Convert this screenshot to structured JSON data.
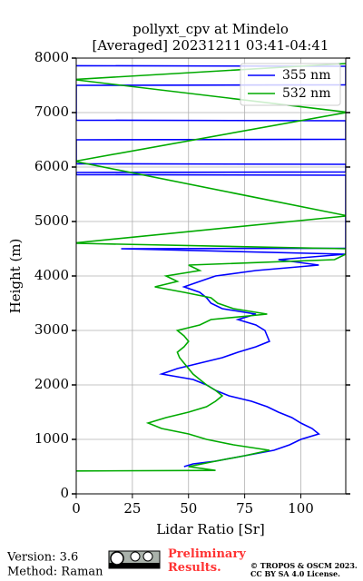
{
  "chart_data": {
    "type": "line",
    "title": "pollyxt_cpv at Mindelo",
    "subtitle": "[Averaged] 20231211 03:41-04:41",
    "xlabel": "Lidar Ratio [Sr]",
    "ylabel": "Height (m)",
    "xlim": [
      0,
      120
    ],
    "xticks": [
      0,
      25,
      50,
      75,
      100
    ],
    "ylim": [
      0,
      8000
    ],
    "yticks": [
      0,
      1000,
      2000,
      3000,
      4000,
      5000,
      6000,
      7000,
      8000
    ],
    "grid": true,
    "legend": "upper right",
    "series": [
      {
        "name": "355 nm",
        "color": "#0000ff",
        "y": [
          500,
          550,
          600,
          700,
          800,
          900,
          1000,
          1100,
          1200,
          1300,
          1400,
          1500,
          1600,
          1700,
          1800,
          1900,
          2000,
          2100,
          2200,
          2300,
          2400,
          2500,
          2600,
          2700,
          2800,
          2900,
          3000,
          3100,
          3200,
          3300,
          3400,
          3500,
          3600,
          3700,
          3800,
          3900,
          4000,
          4100,
          4200,
          4300,
          4400,
          4500,
          4510,
          5850,
          5860,
          5900,
          5910,
          6050,
          6060,
          6500,
          6510,
          6850,
          6860,
          7500,
          7510,
          7850,
          7860
        ],
        "values": [
          48,
          52,
          62,
          75,
          88,
          95,
          100,
          108,
          105,
          100,
          96,
          90,
          85,
          78,
          68,
          62,
          58,
          52,
          38,
          45,
          55,
          65,
          72,
          80,
          86,
          85,
          84,
          80,
          72,
          80,
          65,
          60,
          58,
          55,
          48,
          55,
          62,
          80,
          108,
          90,
          120,
          20,
          120,
          120,
          0,
          0,
          120,
          120,
          0,
          0,
          120,
          120,
          0,
          0,
          120,
          120,
          0
        ]
      },
      {
        "name": "532 nm",
        "color": "#00aa00",
        "y": [
          420,
          430,
          500,
          600,
          700,
          800,
          900,
          1000,
          1100,
          1200,
          1300,
          1400,
          1500,
          1600,
          1700,
          1800,
          1900,
          2000,
          2100,
          2200,
          2300,
          2400,
          2500,
          2600,
          2700,
          2800,
          2900,
          3000,
          3100,
          3200,
          3300,
          3400,
          3500,
          3600,
          3700,
          3800,
          3900,
          4000,
          4100,
          4200,
          4300,
          4400,
          4500,
          4600,
          4610,
          5100,
          5110,
          6100,
          6110,
          7000,
          7010,
          7600,
          7610,
          7900,
          7910
        ],
        "values": [
          0,
          62,
          50,
          62,
          75,
          86,
          70,
          58,
          50,
          38,
          32,
          40,
          50,
          58,
          62,
          65,
          62,
          58,
          55,
          52,
          50,
          48,
          46,
          45,
          48,
          50,
          48,
          45,
          55,
          60,
          85,
          70,
          63,
          60,
          48,
          35,
          45,
          40,
          55,
          50,
          115,
          120,
          120,
          0,
          0,
          120,
          120,
          0,
          0,
          120,
          120,
          0,
          0,
          120,
          120
        ]
      }
    ]
  },
  "footer": {
    "version": "Version: 3.6",
    "method": "Method: Raman",
    "preliminary": "Preliminary Results.",
    "copyright": "© TROPOS & OSCM 2023.",
    "license": "CC BY SA 4.0 License."
  }
}
